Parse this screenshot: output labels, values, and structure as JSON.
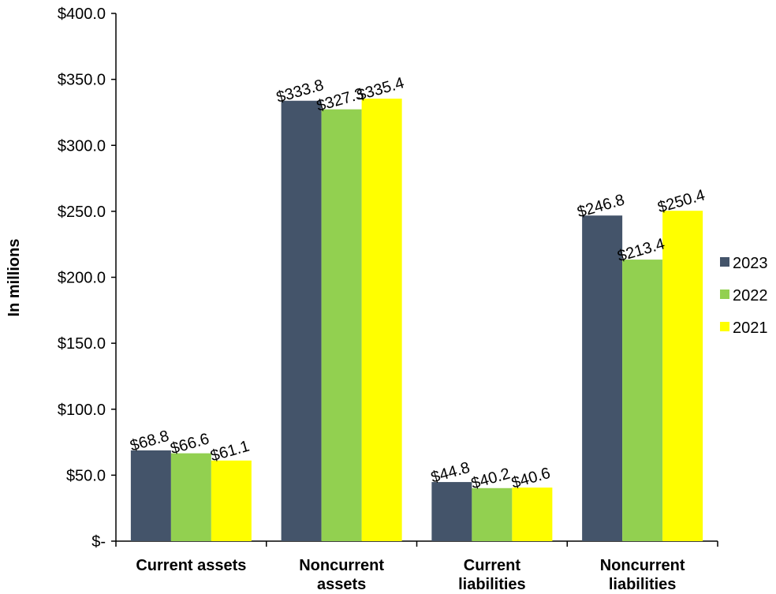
{
  "chart_data": {
    "type": "bar",
    "title": "",
    "xlabel": "",
    "ylabel": "In millions",
    "ylim": [
      0,
      400
    ],
    "yticks": [
      0,
      50,
      100,
      150,
      200,
      250,
      300,
      350,
      400
    ],
    "ytick_labels": [
      "$-",
      "$50.0",
      "$100.0",
      "$150.0",
      "$200.0",
      "$250.0",
      "$300.0",
      "$350.0",
      "$400.0"
    ],
    "categories": [
      [
        "Current assets"
      ],
      [
        "Noncurrent",
        "assets"
      ],
      [
        "Current",
        "liabilities"
      ],
      [
        "Noncurrent",
        "liabilities"
      ]
    ],
    "series": [
      {
        "name": "2023",
        "color": "#44546a",
        "values": [
          68.8,
          333.8,
          44.8,
          246.8
        ],
        "labels": [
          "$68.8",
          "$333.8",
          "$44.8",
          "$246.8"
        ]
      },
      {
        "name": "2022",
        "color": "#92d050",
        "values": [
          66.6,
          327.3,
          40.2,
          213.4
        ],
        "labels": [
          "$66.6",
          "$327.3",
          "$40.2",
          "$213.4"
        ]
      },
      {
        "name": "2021",
        "color": "#ffff00",
        "values": [
          61.1,
          335.4,
          40.6,
          250.4
        ],
        "labels": [
          "$61.1",
          "$335.4",
          "$40.6",
          "$250.4"
        ]
      }
    ],
    "legend_position": "right",
    "grid": false
  }
}
